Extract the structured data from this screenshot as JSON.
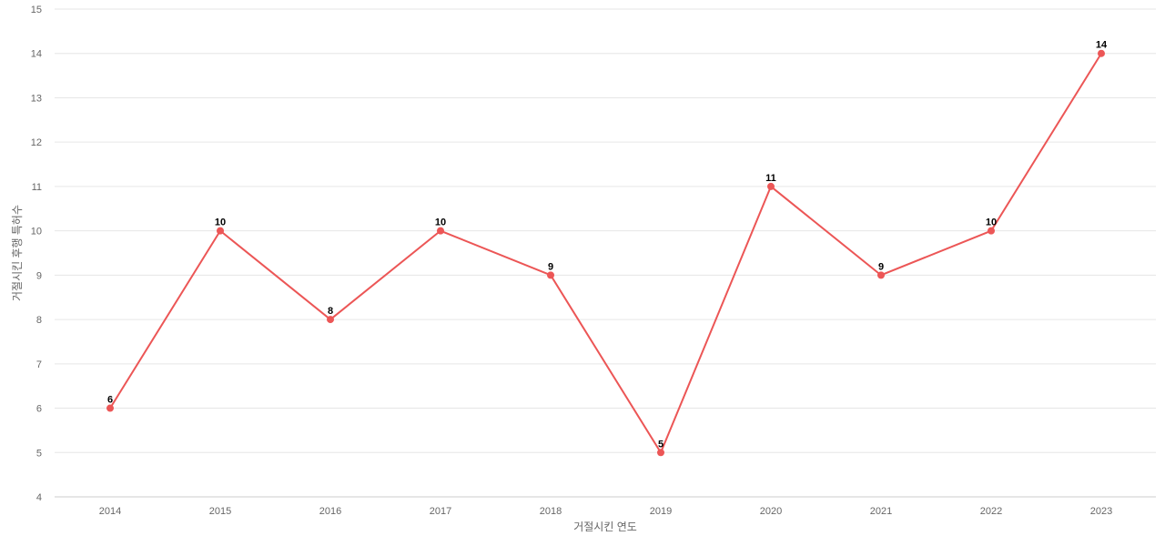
{
  "colors": {
    "series": "#ec5656",
    "grid": "#e6e6e6",
    "tick_text": "#666666"
  },
  "chart_data": {
    "type": "line",
    "title": "",
    "xlabel": "거절시킨 연도",
    "ylabel": "거절시킨 후행 특허수",
    "categories": [
      "2014",
      "2015",
      "2016",
      "2017",
      "2018",
      "2019",
      "2020",
      "2021",
      "2022",
      "2023"
    ],
    "series": [
      {
        "values": [
          6,
          10,
          8,
          10,
          9,
          5,
          11,
          9,
          10,
          14
        ]
      }
    ],
    "ylim": [
      4,
      15
    ],
    "yticks": [
      4,
      5,
      6,
      7,
      8,
      9,
      10,
      11,
      12,
      13,
      14,
      15
    ],
    "grid": true,
    "legend": "none",
    "data_labels": true
  }
}
